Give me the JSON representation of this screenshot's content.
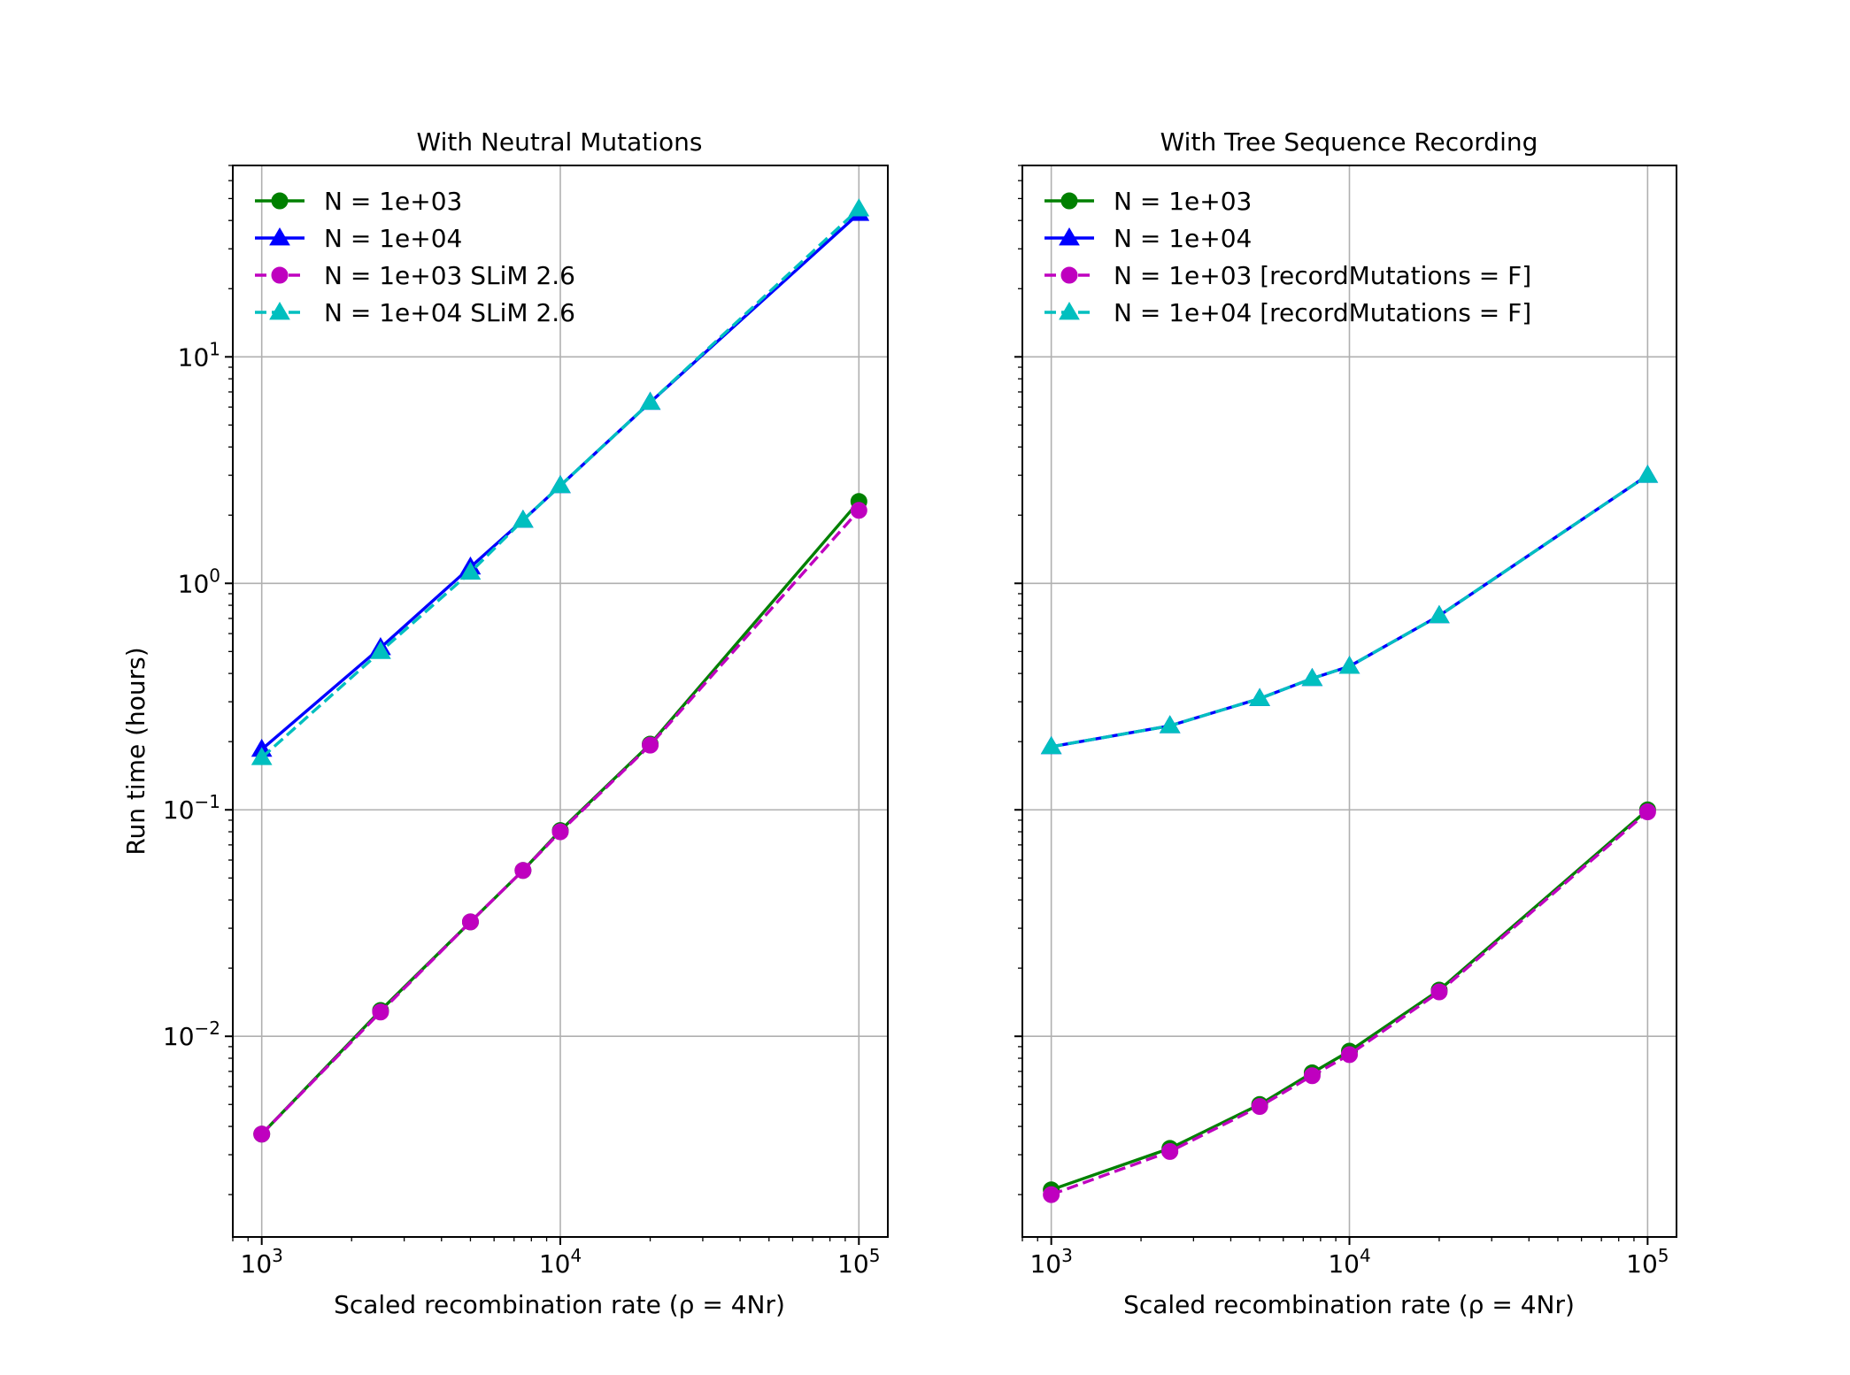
{
  "chart_data": [
    {
      "type": "line",
      "title": "With Neutral Mutations",
      "xlabel": "Scaled recombination rate (ρ = 4Nr)",
      "ylabel": "Run time (hours)",
      "xscale": "log",
      "yscale": "log",
      "xlim": [
        800,
        125000
      ],
      "ylim": [
        0.0013,
        70
      ],
      "xticks": [
        {
          "value": 1000,
          "base": "10",
          "exp": "3"
        },
        {
          "value": 10000,
          "base": "10",
          "exp": "4"
        },
        {
          "value": 100000,
          "base": "10",
          "exp": "5"
        }
      ],
      "yticks": [
        {
          "value": 0.01,
          "base": "10",
          "exp": "−2"
        },
        {
          "value": 0.1,
          "base": "10",
          "exp": "−1"
        },
        {
          "value": 1,
          "base": "10",
          "exp": "0"
        },
        {
          "value": 10,
          "base": "10",
          "exp": "1"
        }
      ],
      "grid": true,
      "legend_position": "upper-left",
      "series": [
        {
          "name": "N = 1e+03",
          "color": "#008000",
          "marker": "circle",
          "linestyle": "solid",
          "x": [
            1000,
            2500,
            5000,
            7500,
            10000,
            20000,
            100000
          ],
          "y": [
            0.0037,
            0.013,
            0.032,
            0.054,
            0.081,
            0.195,
            2.3
          ]
        },
        {
          "name": "N = 1e+04",
          "color": "#0000ff",
          "marker": "triangle",
          "linestyle": "solid",
          "x": [
            1000,
            2500,
            5000,
            7500,
            10000,
            20000,
            100000
          ],
          "y": [
            0.185,
            0.52,
            1.18,
            1.9,
            2.7,
            6.3,
            43
          ]
        },
        {
          "name": "N = 1e+03 SLiM 2.6",
          "color": "#bf00bf",
          "marker": "circle",
          "linestyle": "dashed",
          "x": [
            1000,
            2500,
            5000,
            7500,
            10000,
            20000,
            100000
          ],
          "y": [
            0.0037,
            0.0128,
            0.032,
            0.054,
            0.08,
            0.193,
            2.1
          ]
        },
        {
          "name": "N = 1e+04 SLiM 2.6",
          "color": "#00bfbf",
          "marker": "triangle",
          "linestyle": "dashed",
          "x": [
            1000,
            2500,
            5000,
            7500,
            10000,
            20000,
            100000
          ],
          "y": [
            0.17,
            0.5,
            1.12,
            1.9,
            2.7,
            6.3,
            45
          ]
        }
      ]
    },
    {
      "type": "line",
      "title": "With Tree Sequence Recording",
      "xlabel": "Scaled recombination rate (ρ = 4Nr)",
      "ylabel": "",
      "xscale": "log",
      "yscale": "log",
      "xlim": [
        800,
        125000
      ],
      "ylim": [
        0.0013,
        70
      ],
      "xticks": [
        {
          "value": 1000,
          "base": "10",
          "exp": "3"
        },
        {
          "value": 10000,
          "base": "10",
          "exp": "4"
        },
        {
          "value": 100000,
          "base": "10",
          "exp": "5"
        }
      ],
      "yticks": [],
      "grid": true,
      "legend_position": "upper-left",
      "series": [
        {
          "name": "N = 1e+03",
          "color": "#008000",
          "marker": "circle",
          "linestyle": "solid",
          "x": [
            1000,
            2500,
            5000,
            7500,
            10000,
            20000,
            100000
          ],
          "y": [
            0.0021,
            0.0032,
            0.005,
            0.0069,
            0.0086,
            0.016,
            0.1
          ]
        },
        {
          "name": "N = 1e+04",
          "color": "#0000ff",
          "marker": "triangle",
          "linestyle": "solid",
          "x": [
            1000,
            2500,
            5000,
            7500,
            10000,
            20000,
            100000
          ],
          "y": [
            0.19,
            0.235,
            0.31,
            0.38,
            0.43,
            0.72,
            3.0
          ]
        },
        {
          "name": "N = 1e+03 [recordMutations = F]",
          "color": "#bf00bf",
          "marker": "circle",
          "linestyle": "dashed",
          "x": [
            1000,
            2500,
            5000,
            7500,
            10000,
            20000,
            100000
          ],
          "y": [
            0.002,
            0.0031,
            0.0049,
            0.0067,
            0.0083,
            0.0157,
            0.098
          ]
        },
        {
          "name": "N = 1e+04 [recordMutations = F]",
          "color": "#00bfbf",
          "marker": "triangle",
          "linestyle": "dashed",
          "x": [
            1000,
            2500,
            5000,
            7500,
            10000,
            20000,
            100000
          ],
          "y": [
            0.19,
            0.235,
            0.31,
            0.38,
            0.43,
            0.72,
            3.0
          ]
        }
      ]
    }
  ]
}
